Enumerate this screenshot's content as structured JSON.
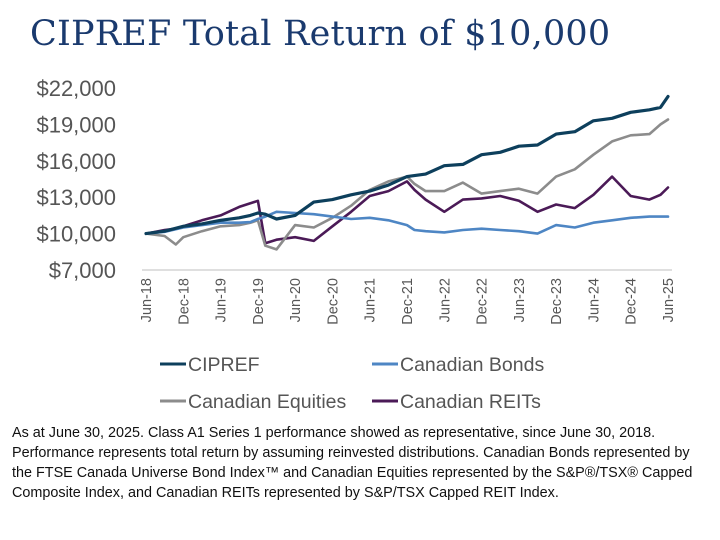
{
  "chart_data": {
    "type": "line",
    "title": "CIPREF Total Return of $10,000",
    "xlabel": "",
    "ylabel": "",
    "ylim": [
      7000,
      22000
    ],
    "yticks": [
      7000,
      10000,
      13000,
      16000,
      19000,
      22000
    ],
    "ytick_labels": [
      "$7,000",
      "$10,000",
      "$13,000",
      "$16,000",
      "$19,000",
      "$22,000"
    ],
    "x_range": [
      2018.5,
      2025.5
    ],
    "xtick_labels": [
      "Jun-18",
      "Dec-18",
      "Jun-19",
      "Dec-19",
      "Jun-20",
      "Dec-20",
      "Jun-21",
      "Dec-21",
      "Jun-22",
      "Dec-22",
      "Jun-23",
      "Dec-23",
      "Jun-24",
      "Dec-24",
      "Jun-25"
    ],
    "grid": false,
    "legend_position": "bottom",
    "series": [
      {
        "name": "CIPREF",
        "color": "#0d3f5c",
        "x": [
          2018.5,
          2018.75,
          2019,
          2019.25,
          2019.5,
          2019.75,
          2019.9,
          2020.0,
          2020.1,
          2020.25,
          2020.5,
          2020.75,
          2021,
          2021.25,
          2021.5,
          2021.75,
          2022,
          2022.25,
          2022.5,
          2022.75,
          2023,
          2023.25,
          2023.5,
          2023.75,
          2024,
          2024.25,
          2024.5,
          2024.75,
          2025,
          2025.25,
          2025.4,
          2025.5
        ],
        "values": [
          10000,
          10200,
          10600,
          10800,
          11100,
          11300,
          11500,
          11700,
          11600,
          11200,
          11500,
          12600,
          12800,
          13200,
          13500,
          14000,
          14700,
          14900,
          15600,
          15700,
          16500,
          16700,
          17200,
          17300,
          18200,
          18400,
          19300,
          19500,
          20000,
          20200,
          20400,
          21300
        ]
      },
      {
        "name": "Canadian Bonds",
        "color": "#4e86c4",
        "x": [
          2018.5,
          2018.75,
          2019,
          2019.25,
          2019.5,
          2019.75,
          2019.9,
          2020.0,
          2020.1,
          2020.25,
          2020.5,
          2020.75,
          2021,
          2021.25,
          2021.5,
          2021.75,
          2022,
          2022.1,
          2022.25,
          2022.5,
          2022.75,
          2023,
          2023.25,
          2023.5,
          2023.75,
          2024,
          2024.25,
          2024.5,
          2024.75,
          2025,
          2025.25,
          2025.5
        ],
        "values": [
          10000,
          10150,
          10500,
          10700,
          10900,
          10900,
          10950,
          11200,
          11400,
          11800,
          11700,
          11600,
          11400,
          11200,
          11300,
          11100,
          10700,
          10300,
          10200,
          10100,
          10300,
          10400,
          10300,
          10200,
          10000,
          10700,
          10500,
          10900,
          11100,
          11300,
          11400,
          11400
        ]
      },
      {
        "name": "Canadian Equities",
        "color": "#8c8c8c",
        "x": [
          2018.5,
          2018.75,
          2018.9,
          2019,
          2019.25,
          2019.5,
          2019.75,
          2019.9,
          2020.0,
          2020.1,
          2020.25,
          2020.5,
          2020.75,
          2021,
          2021.25,
          2021.5,
          2021.75,
          2022,
          2022.1,
          2022.25,
          2022.5,
          2022.75,
          2023,
          2023.25,
          2023.5,
          2023.75,
          2024,
          2024.25,
          2024.5,
          2024.75,
          2025,
          2025.25,
          2025.4,
          2025.5
        ],
        "values": [
          10000,
          9800,
          9100,
          9700,
          10200,
          10600,
          10700,
          10900,
          11100,
          9000,
          8700,
          10700,
          10500,
          11300,
          12300,
          13600,
          14300,
          14700,
          14100,
          13500,
          13500,
          14200,
          13300,
          13500,
          13700,
          13300,
          14700,
          15300,
          16500,
          17600,
          18100,
          18200,
          19000,
          19400
        ]
      },
      {
        "name": "Canadian REITs",
        "color": "#4b1a57",
        "x": [
          2018.5,
          2018.75,
          2018.9,
          2019,
          2019.25,
          2019.5,
          2019.75,
          2019.9,
          2020.0,
          2020.1,
          2020.25,
          2020.5,
          2020.75,
          2021,
          2021.25,
          2021.5,
          2021.75,
          2022,
          2022.1,
          2022.25,
          2022.5,
          2022.75,
          2023,
          2023.25,
          2023.5,
          2023.75,
          2024,
          2024.25,
          2024.5,
          2024.75,
          2025,
          2025.25,
          2025.4,
          2025.5
        ],
        "values": [
          10000,
          10300,
          10400,
          10600,
          11100,
          11500,
          12200,
          12500,
          12700,
          9200,
          9500,
          9700,
          9400,
          10600,
          11800,
          13100,
          13500,
          14300,
          13600,
          12800,
          11800,
          12800,
          12900,
          13100,
          12700,
          11800,
          12400,
          12100,
          13200,
          14700,
          13100,
          12800,
          13200,
          13800
        ]
      }
    ]
  },
  "footnote": "As at June 30, 2025. Class A1 Series 1 performance showed as representative, since June 30, 2018. Performance represents total return by assuming reinvested distributions. Canadian Bonds represented by the FTSE Canada Universe Bond Index™ and Canadian Equities represented by the S&P®/TSX® Capped Composite Index, and Canadian REITs represented by S&P/TSX Capped REIT Index."
}
